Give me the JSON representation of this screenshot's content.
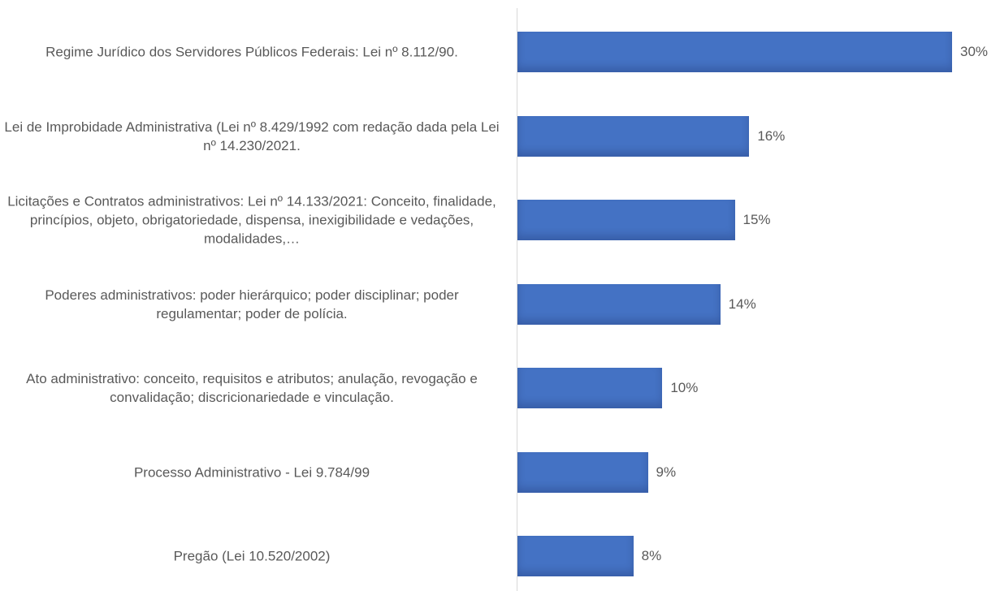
{
  "chart_data": {
    "type": "bar",
    "orientation": "horizontal",
    "categories": [
      "Regime Jurídico dos Servidores Públicos Federais: Lei nº 8.112/90.",
      "Lei de Improbidade Administrativa (Lei nº 8.429/1992 com redação dada pela Lei nº 14.230/2021.",
      "Licitações e Contratos administrativos: Lei nº 14.133/2021: Conceito, finalidade, princípios, objeto, obrigatoriedade, dispensa, inexigibilidade e vedações, modalidades,…",
      "Poderes administrativos: poder hierárquico; poder disciplinar; poder regulamentar; poder de polícia.",
      "Ato administrativo: conceito, requisitos e atributos; anulação, revogação e convalidação; discricionariedade e vinculação.",
      "Processo Administrativo - Lei 9.784/99",
      "Pregão (Lei 10.520/2002)"
    ],
    "values": [
      30,
      16,
      15,
      14,
      10,
      9,
      8
    ],
    "value_labels": [
      "30%",
      "16%",
      "15%",
      "14%",
      "10%",
      "9%",
      "8%"
    ],
    "color": "#4472c4"
  }
}
